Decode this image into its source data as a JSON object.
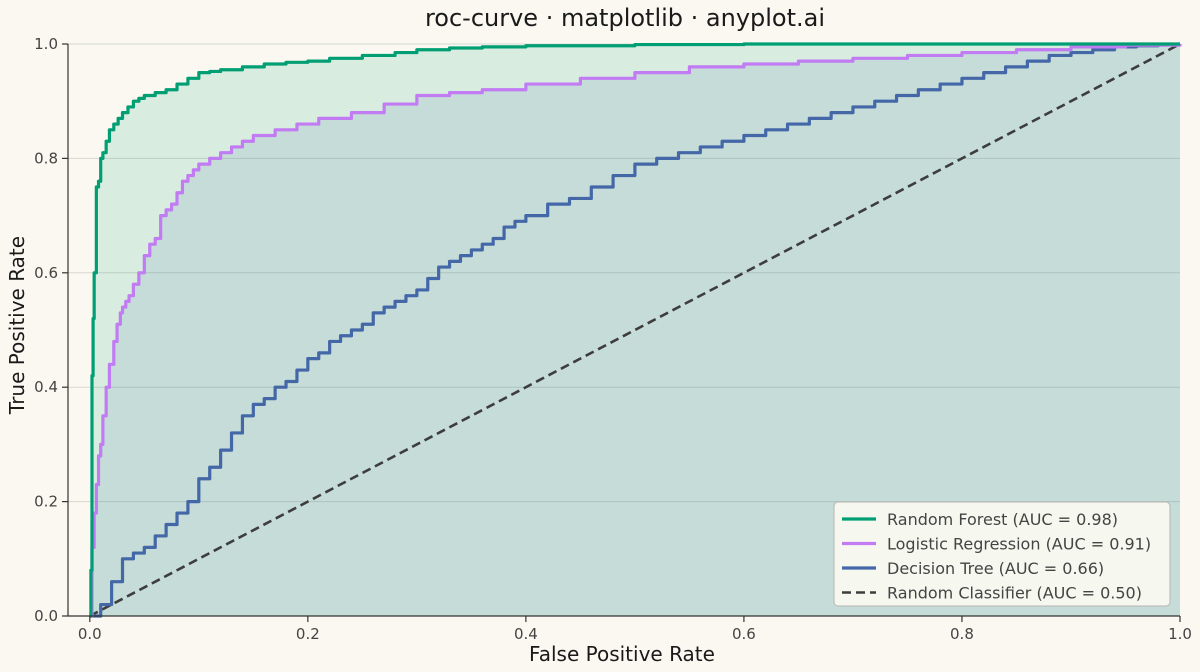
{
  "chart_data": {
    "type": "line",
    "title": "roc-curve · matplotlib · anyplot.ai",
    "xlabel": "False Positive Rate",
    "ylabel": "True Positive Rate",
    "xlim": [
      0.0,
      1.0
    ],
    "ylim": [
      0.0,
      1.0
    ],
    "x_ticks": [
      "0.0",
      "0.2",
      "0.4",
      "0.6",
      "0.8",
      "1.0"
    ],
    "y_ticks": [
      "0.0",
      "0.2",
      "0.4",
      "0.6",
      "0.8",
      "1.0"
    ],
    "grid": "horizontal",
    "legend_position": "lower-right",
    "series": [
      {
        "name": "Random Forest (AUC = 0.98)",
        "color": "#009E73",
        "style": "solid",
        "fill": true,
        "x": [
          0,
          0.001,
          0.002,
          0.003,
          0.004,
          0.006,
          0.008,
          0.01,
          0.012,
          0.015,
          0.018,
          0.022,
          0.026,
          0.03,
          0.035,
          0.04,
          0.045,
          0.05,
          0.06,
          0.07,
          0.08,
          0.09,
          0.1,
          0.11,
          0.12,
          0.14,
          0.16,
          0.18,
          0.2,
          0.22,
          0.25,
          0.28,
          0.3,
          0.33,
          0.36,
          0.4,
          0.5,
          0.6,
          0.7,
          0.8,
          0.9,
          1.0
        ],
        "y": [
          0,
          0.08,
          0.42,
          0.52,
          0.6,
          0.75,
          0.76,
          0.8,
          0.81,
          0.83,
          0.85,
          0.86,
          0.87,
          0.88,
          0.89,
          0.9,
          0.905,
          0.91,
          0.915,
          0.92,
          0.93,
          0.94,
          0.95,
          0.952,
          0.955,
          0.96,
          0.965,
          0.968,
          0.97,
          0.975,
          0.98,
          0.985,
          0.99,
          0.993,
          0.995,
          0.997,
          0.999,
          1.0,
          1.0,
          1.0,
          1.0,
          1.0
        ]
      },
      {
        "name": "Logistic Regression (AUC = 0.91)",
        "color": "#C17BF3",
        "style": "solid",
        "fill": false,
        "x": [
          0,
          0.002,
          0.004,
          0.006,
          0.008,
          0.01,
          0.012,
          0.015,
          0.018,
          0.022,
          0.025,
          0.028,
          0.03,
          0.033,
          0.036,
          0.04,
          0.045,
          0.05,
          0.055,
          0.06,
          0.065,
          0.07,
          0.075,
          0.08,
          0.085,
          0.09,
          0.095,
          0.1,
          0.11,
          0.12,
          0.13,
          0.14,
          0.15,
          0.17,
          0.19,
          0.21,
          0.24,
          0.27,
          0.3,
          0.33,
          0.36,
          0.4,
          0.45,
          0.5,
          0.55,
          0.6,
          0.65,
          0.7,
          0.75,
          0.8,
          0.85,
          0.9,
          0.95,
          1.0
        ],
        "y": [
          0,
          0.12,
          0.18,
          0.23,
          0.28,
          0.3,
          0.35,
          0.4,
          0.44,
          0.48,
          0.51,
          0.53,
          0.54,
          0.55,
          0.56,
          0.58,
          0.6,
          0.63,
          0.65,
          0.66,
          0.7,
          0.71,
          0.72,
          0.74,
          0.76,
          0.77,
          0.78,
          0.79,
          0.8,
          0.81,
          0.82,
          0.83,
          0.84,
          0.85,
          0.86,
          0.87,
          0.88,
          0.895,
          0.91,
          0.915,
          0.92,
          0.93,
          0.94,
          0.95,
          0.96,
          0.965,
          0.97,
          0.975,
          0.98,
          0.985,
          0.99,
          0.995,
          0.998,
          1.0
        ]
      },
      {
        "name": "Decision Tree (AUC = 0.66)",
        "color": "#4467A8",
        "style": "solid",
        "fill": false,
        "x": [
          0,
          0.01,
          0.02,
          0.03,
          0.04,
          0.05,
          0.06,
          0.07,
          0.08,
          0.09,
          0.1,
          0.11,
          0.12,
          0.13,
          0.14,
          0.15,
          0.16,
          0.17,
          0.18,
          0.19,
          0.2,
          0.21,
          0.22,
          0.23,
          0.24,
          0.25,
          0.26,
          0.27,
          0.28,
          0.29,
          0.3,
          0.31,
          0.32,
          0.33,
          0.34,
          0.35,
          0.36,
          0.37,
          0.38,
          0.39,
          0.4,
          0.42,
          0.44,
          0.46,
          0.48,
          0.5,
          0.52,
          0.54,
          0.56,
          0.58,
          0.6,
          0.62,
          0.64,
          0.66,
          0.68,
          0.7,
          0.72,
          0.74,
          0.76,
          0.78,
          0.8,
          0.82,
          0.84,
          0.86,
          0.88,
          0.9,
          0.92,
          0.94,
          0.96,
          0.98,
          1.0
        ],
        "y": [
          0,
          0.02,
          0.06,
          0.1,
          0.11,
          0.12,
          0.14,
          0.16,
          0.18,
          0.2,
          0.24,
          0.26,
          0.29,
          0.32,
          0.35,
          0.37,
          0.38,
          0.4,
          0.41,
          0.43,
          0.45,
          0.46,
          0.48,
          0.49,
          0.5,
          0.51,
          0.53,
          0.54,
          0.55,
          0.56,
          0.57,
          0.59,
          0.61,
          0.62,
          0.63,
          0.64,
          0.65,
          0.66,
          0.68,
          0.69,
          0.7,
          0.72,
          0.73,
          0.75,
          0.77,
          0.79,
          0.8,
          0.81,
          0.82,
          0.83,
          0.84,
          0.85,
          0.86,
          0.87,
          0.88,
          0.89,
          0.9,
          0.91,
          0.92,
          0.93,
          0.94,
          0.95,
          0.96,
          0.97,
          0.98,
          0.985,
          0.99,
          0.995,
          0.997,
          0.999,
          1.0
        ]
      },
      {
        "name": "Random Classifier (AUC = 0.50)",
        "color": "#3d3d3d",
        "style": "dashed",
        "fill": false,
        "x": [
          0,
          1
        ],
        "y": [
          0,
          1
        ]
      }
    ]
  }
}
